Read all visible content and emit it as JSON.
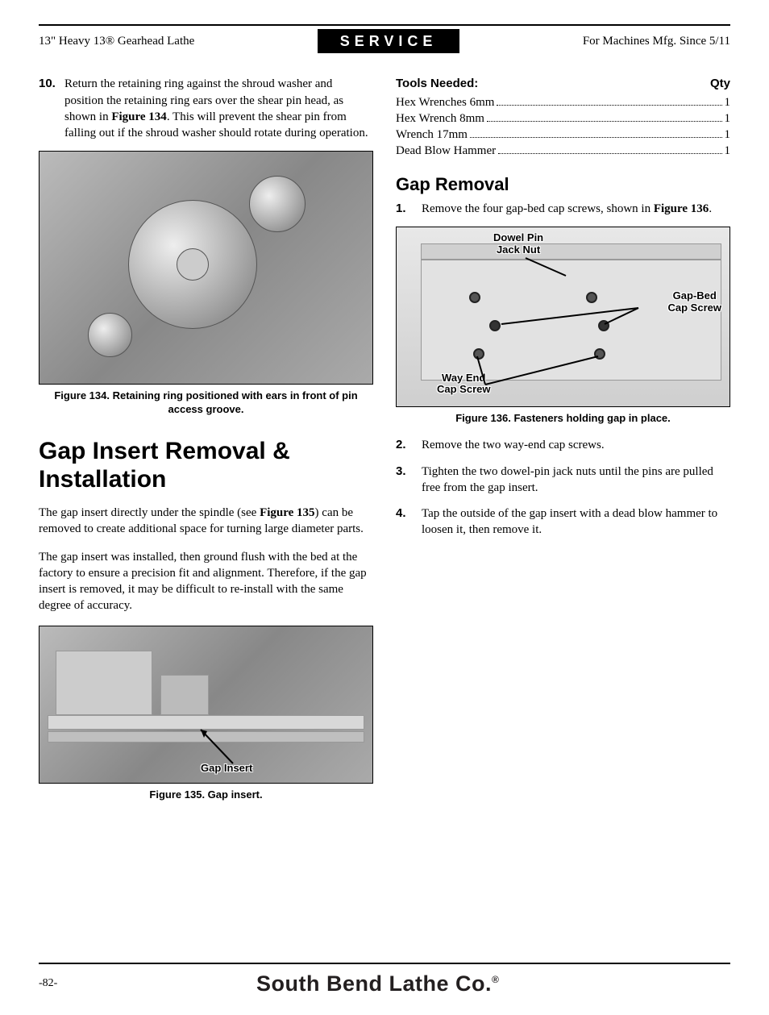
{
  "header": {
    "left": "13\" Heavy 13® Gearhead Lathe",
    "center": "SERVICE",
    "right": "For Machines Mfg. Since 5/11"
  },
  "left_col": {
    "step10_num": "10.",
    "step10_a": "Return the retaining ring against the shroud washer and position the retaining ring ears over the shear pin head, as shown in ",
    "step10_fig": "Figure 134",
    "step10_b": ". This will prevent the shear pin from falling out if the shroud washer should rotate during operation.",
    "fig134_caption": "Figure 134. Retaining ring positioned with ears in front of pin access groove.",
    "h2": "Gap Insert Removal & Installation",
    "para1_a": "The gap insert directly under the spindle (see ",
    "para1_fig": "Figure 135",
    "para1_b": ") can be removed to create additional space for turning large diameter parts.",
    "para2": "The gap insert was installed, then ground flush with the bed at the factory to ensure a precision fit and alignment. Therefore, if the gap insert is removed, it may be difficult to re-install with the same degree of accuracy.",
    "fig135_callout": "Gap Insert",
    "fig135_caption": "Figure 135. Gap insert."
  },
  "right_col": {
    "tools_hdr_l": "Tools Needed:",
    "tools_hdr_r": "Qty",
    "tools": [
      {
        "name": "Hex Wrenches 6mm",
        "qty": "1"
      },
      {
        "name": "Hex Wrench 8mm",
        "qty": "1"
      },
      {
        "name": "Wrench 17mm",
        "qty": "1"
      },
      {
        "name": "Dead Blow Hammer",
        "qty": "1"
      }
    ],
    "h3": "Gap Removal",
    "step1_num": "1.",
    "step1_a": "Remove the four gap-bed cap screws, shown in ",
    "step1_fig": "Figure 136",
    "step1_b": ".",
    "fig136_c1": "Dowel Pin\nJack Nut",
    "fig136_c2": "Gap-Bed\nCap Screw",
    "fig136_c3": "Way End\nCap Screw",
    "fig136_caption": "Figure 136. Fasteners holding gap in place.",
    "step2_num": "2.",
    "step2": "Remove the two way-end cap screws.",
    "step3_num": "3.",
    "step3": "Tighten the two dowel-pin jack nuts until the pins are pulled free from the gap insert.",
    "step4_num": "4.",
    "step4": "Tap the outside of the gap insert with a dead blow hammer to loosen it, then remove it."
  },
  "footer": {
    "page": "-82-",
    "brand": "South Bend Lathe Co.",
    "reg": "®"
  }
}
